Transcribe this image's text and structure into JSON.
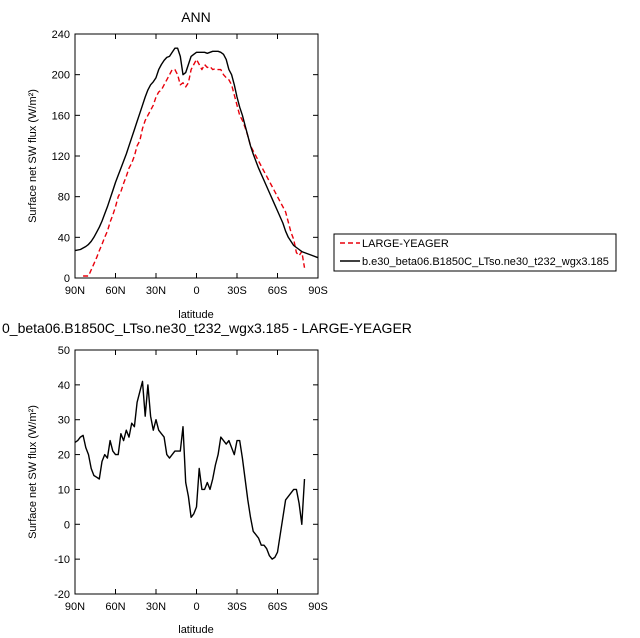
{
  "chart_data": [
    {
      "type": "line",
      "title": "ANN",
      "xlabel": "latitude",
      "ylabel": "Surface net SW flux (W/m²)",
      "xlim": [
        90,
        -90
      ],
      "ylim": [
        0,
        240
      ],
      "xticks": [
        90,
        60,
        30,
        0,
        -30,
        -60,
        -90
      ],
      "xtick_labels": [
        "90N",
        "60N",
        "30N",
        "0",
        "30S",
        "60S",
        "90S"
      ],
      "yticks": [
        0,
        40,
        80,
        120,
        160,
        200,
        240
      ],
      "ytick_labels": [
        "0",
        "40",
        "80",
        "120",
        "160",
        "200",
        "240"
      ],
      "legend_position": "right",
      "series": [
        {
          "name": "LARGE-YEAGER",
          "color": "#e8000b",
          "dash": "dashed",
          "x": [
            84,
            80,
            78,
            76,
            74,
            72,
            70,
            68,
            66,
            64,
            62,
            60,
            58,
            56,
            54,
            52,
            50,
            48,
            46,
            44,
            42,
            40,
            38,
            36,
            34,
            32,
            30,
            28,
            26,
            24,
            22,
            20,
            18,
            16,
            14,
            12,
            10,
            8,
            6,
            4,
            2,
            0,
            -2,
            -4,
            -6,
            -8,
            -10,
            -12,
            -14,
            -16,
            -18,
            -20,
            -22,
            -24,
            -26,
            -28,
            -30,
            -32,
            -34,
            -36,
            -38,
            -40,
            -42,
            -44,
            -46,
            -48,
            -50,
            -52,
            -54,
            -56,
            -58,
            -60,
            -62,
            -64,
            -66,
            -68,
            -70,
            -72,
            -74,
            -76,
            -78,
            -80
          ],
          "y": [
            2,
            2,
            8,
            14,
            20,
            27,
            33,
            40,
            46,
            55,
            62,
            70,
            80,
            85,
            93,
            100,
            108,
            113,
            120,
            130,
            135,
            147,
            155,
            160,
            165,
            170,
            178,
            183,
            185,
            190,
            195,
            200,
            205,
            205,
            200,
            190,
            192,
            188,
            192,
            205,
            210,
            215,
            210,
            205,
            210,
            207,
            208,
            205,
            206,
            205,
            205,
            200,
            197,
            195,
            190,
            180,
            170,
            160,
            155,
            148,
            140,
            130,
            125,
            120,
            115,
            110,
            105,
            100,
            95,
            90,
            85,
            80,
            75,
            70,
            65,
            55,
            45,
            38,
            25,
            22,
            26,
            10
          ]
        },
        {
          "name": "b.e30_beta06.B1850C_LTso.ne30_t232_wgx3.185",
          "color": "#000000",
          "dash": "solid",
          "x": [
            90,
            86,
            82,
            80,
            78,
            76,
            74,
            72,
            70,
            68,
            66,
            64,
            62,
            60,
            58,
            56,
            54,
            52,
            50,
            48,
            46,
            44,
            42,
            40,
            38,
            36,
            34,
            32,
            30,
            28,
            26,
            24,
            22,
            20,
            18,
            16,
            14,
            12,
            10,
            8,
            6,
            4,
            2,
            0,
            -2,
            -4,
            -6,
            -8,
            -10,
            -12,
            -14,
            -16,
            -18,
            -20,
            -22,
            -24,
            -26,
            -28,
            -30,
            -32,
            -34,
            -36,
            -38,
            -40,
            -42,
            -44,
            -46,
            -48,
            -50,
            -52,
            -54,
            -56,
            -58,
            -60,
            -62,
            -64,
            -66,
            -68,
            -70,
            -72,
            -74,
            -76,
            -78,
            -80,
            -82,
            -86,
            -90
          ],
          "y": [
            27,
            28,
            31,
            33,
            36,
            40,
            45,
            50,
            56,
            63,
            70,
            78,
            86,
            94,
            101,
            108,
            115,
            122,
            130,
            138,
            146,
            154,
            162,
            170,
            178,
            185,
            190,
            193,
            197,
            205,
            210,
            214,
            217,
            218,
            222,
            226,
            226,
            218,
            200,
            202,
            210,
            218,
            220,
            222,
            222,
            222,
            222,
            221,
            222,
            223,
            223,
            223,
            222,
            220,
            215,
            205,
            200,
            190,
            178,
            168,
            160,
            150,
            140,
            130,
            122,
            115,
            108,
            102,
            96,
            90,
            84,
            78,
            72,
            66,
            60,
            54,
            46,
            40,
            36,
            32,
            30,
            28,
            26,
            25,
            24,
            22,
            20
          ]
        }
      ]
    },
    {
      "type": "line",
      "title": "0_beta06.B1850C_LTso.ne30_t232_wgx3.185 - LARGE-YEAGER",
      "xlabel": "latitude",
      "ylabel": "Surface net SW flux (W/m²)",
      "xlim": [
        90,
        -90
      ],
      "ylim": [
        -20,
        50
      ],
      "xticks": [
        90,
        60,
        30,
        0,
        -30,
        -60,
        -90
      ],
      "xtick_labels": [
        "90N",
        "60N",
        "30N",
        "0",
        "30S",
        "60S",
        "90S"
      ],
      "yticks": [
        -20,
        -10,
        0,
        10,
        20,
        30,
        40,
        50
      ],
      "ytick_labels": [
        "-20",
        "-10",
        "0",
        "10",
        "20",
        "30",
        "40",
        "50"
      ],
      "series": [
        {
          "color": "#000000",
          "x": [
            90,
            88,
            86,
            84,
            82,
            80,
            78,
            76,
            74,
            72,
            70,
            68,
            66,
            64,
            62,
            60,
            58,
            56,
            54,
            52,
            50,
            48,
            46,
            44,
            42,
            40,
            38,
            36,
            34,
            32,
            30,
            28,
            26,
            24,
            22,
            20,
            18,
            16,
            14,
            12,
            10,
            8,
            6,
            4,
            2,
            0,
            -2,
            -4,
            -6,
            -8,
            -10,
            -12,
            -14,
            -16,
            -18,
            -20,
            -22,
            -24,
            -26,
            -28,
            -30,
            -32,
            -34,
            -36,
            -38,
            -40,
            -42,
            -44,
            -46,
            -48,
            -50,
            -52,
            -54,
            -56,
            -58,
            -60,
            -62,
            -64,
            -66,
            -68,
            -70,
            -72,
            -74,
            -76,
            -78,
            -80
          ],
          "y": [
            23.5,
            24,
            25,
            25.5,
            22,
            20,
            16,
            14,
            13.5,
            13,
            18,
            20,
            19,
            24,
            21,
            20,
            20,
            26,
            24,
            27,
            25,
            29,
            28,
            35,
            38,
            41,
            31,
            40,
            31,
            27,
            30,
            27,
            26,
            25,
            20,
            19,
            20,
            21,
            21,
            21,
            28,
            12,
            8,
            2,
            3,
            5,
            16,
            10,
            10,
            12,
            10,
            13,
            17,
            20,
            25,
            24,
            23,
            24,
            22,
            20,
            24,
            24,
            19,
            13,
            7,
            2,
            -2,
            -3,
            -4,
            -6,
            -6,
            -7,
            -9,
            -10,
            -9.5,
            -8,
            -3,
            2,
            7,
            8,
            9,
            10,
            10,
            6,
            0,
            13
          ]
        }
      ]
    }
  ]
}
